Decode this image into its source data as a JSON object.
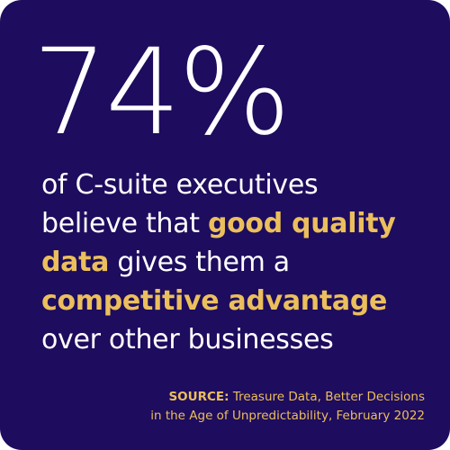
{
  "colors": {
    "background": "#1e0c5e",
    "text": "#ffffff",
    "accent": "#ebbf5c"
  },
  "stat": {
    "value": "74%"
  },
  "statement": {
    "line1": "of C-suite executives",
    "line2_plain": "believe that ",
    "line2_highlight": "good quality",
    "line3_highlight": "data",
    "line3_plain": " gives them a",
    "line4_highlight": "competitive advantage",
    "line5": "over other businesses"
  },
  "source": {
    "label": "SOURCE:",
    "line1_text": " Treasure Data, Better Decisions",
    "line2_text": "in the Age of Unpredictability, February 2022"
  }
}
